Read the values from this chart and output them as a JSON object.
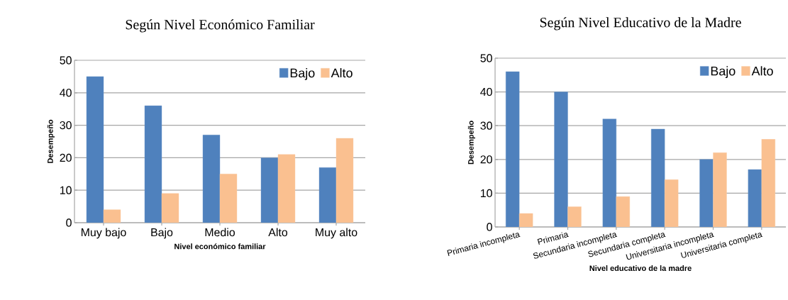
{
  "chart_data": [
    {
      "type": "bar",
      "title": "Según Nivel Económico Familiar",
      "xlabel": "Nivel económico familiar",
      "ylabel": "Desempeño",
      "categories": [
        "Muy bajo",
        "Bajo",
        "Medio",
        "Alto",
        "Muy alto"
      ],
      "series": [
        {
          "name": "Bajo",
          "color": "#4f81bd",
          "values": [
            45,
            36,
            27,
            20,
            17
          ]
        },
        {
          "name": "Alto",
          "color": "#fac090",
          "values": [
            4,
            9,
            15,
            21,
            26
          ]
        }
      ],
      "ylim": [
        0,
        50
      ],
      "yticks": [
        0,
        10,
        20,
        30,
        40,
        50
      ],
      "grid": "y",
      "legend": "top right"
    },
    {
      "type": "bar",
      "title": "Según Nivel Educativo de la Madre",
      "xlabel": "Nivel educativo de la madre",
      "ylabel": "Desempeño",
      "categories": [
        "Primaria incompleta",
        "Primaria",
        "Secundaria incompleta",
        "Secundaria completa",
        "Universitaria incompleta",
        "Universitaria completa"
      ],
      "series": [
        {
          "name": "Bajo",
          "color": "#4f81bd",
          "values": [
            46,
            40,
            32,
            29,
            20,
            17
          ]
        },
        {
          "name": "Alto",
          "color": "#fac090",
          "values": [
            4,
            6,
            9,
            14,
            22,
            26
          ]
        }
      ],
      "ylim": [
        0,
        50
      ],
      "yticks": [
        0,
        10,
        20,
        30,
        40,
        50
      ],
      "grid": "y",
      "legend": "top right"
    }
  ]
}
